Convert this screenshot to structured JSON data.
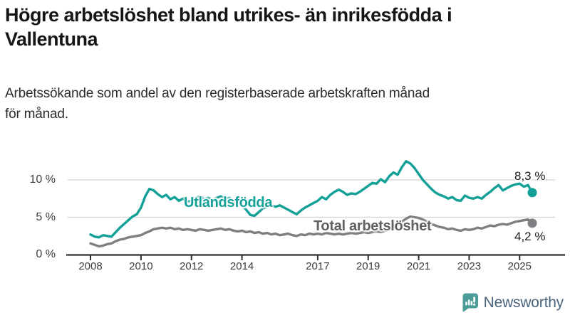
{
  "header": {
    "title": {
      "line1": "Högre arbetslöshet bland utrikes- än inrikesfödda i",
      "line2": "Vallentuna"
    },
    "subtitle": {
      "line1": "Arbetssökande som andel av den registerbaserade arbetskraften månad",
      "line2": "för månad."
    }
  },
  "chart_data": {
    "type": "line",
    "x_start_year": 2008,
    "x_step_years": 0.1666667,
    "x_tick_years": [
      2008,
      2010,
      2012,
      2014,
      2017,
      2019,
      2021,
      2023,
      2025
    ],
    "x_tick_labels": [
      "2008",
      "2010",
      "2012",
      "2014",
      "2017",
      "2019",
      "2021",
      "2023",
      "2025"
    ],
    "y_ticks": [
      {
        "value": 0,
        "label": "0 %"
      },
      {
        "value": 5,
        "label": "5 %"
      },
      {
        "value": 10,
        "label": "10 %"
      }
    ],
    "ylim": [
      0,
      13.5
    ],
    "grid": true,
    "series": [
      {
        "name": "Utlandsfödda",
        "color": "#13a097",
        "end_label": "8,3 %",
        "end_value": 8.3,
        "values": [
          2.7,
          2.4,
          2.3,
          2.6,
          2.5,
          2.4,
          3.0,
          3.6,
          4.1,
          4.6,
          5.1,
          5.4,
          6.3,
          7.8,
          8.8,
          8.6,
          8.1,
          7.7,
          8.0,
          7.4,
          7.7,
          7.2,
          7.5,
          7.1,
          7.2,
          7.6,
          7.8,
          7.4,
          7.6,
          7.3,
          7.6,
          7.8,
          7.4,
          7.6,
          7.2,
          7.0,
          6.6,
          6.0,
          5.3,
          5.2,
          5.7,
          6.2,
          6.4,
          6.6,
          6.4,
          6.6,
          6.3,
          6.0,
          5.7,
          5.4,
          5.9,
          6.3,
          6.6,
          6.9,
          7.2,
          7.7,
          7.4,
          8.0,
          8.4,
          8.7,
          8.4,
          8.0,
          8.2,
          8.1,
          8.4,
          8.8,
          9.2,
          9.6,
          9.5,
          10.1,
          9.7,
          10.5,
          11.0,
          10.7,
          11.7,
          12.5,
          12.2,
          11.6,
          10.8,
          10.0,
          9.4,
          8.8,
          8.3,
          8.0,
          7.8,
          7.5,
          7.7,
          7.3,
          7.2,
          7.9,
          7.6,
          7.5,
          7.7,
          7.5,
          8.0,
          8.4,
          8.9,
          9.3,
          8.6,
          8.9,
          9.2,
          9.4,
          9.5,
          9.1,
          9.3,
          8.3
        ]
      },
      {
        "name": "Total arbetslöshet",
        "color": "#7e7e83",
        "label_color": "#5f5f64",
        "end_label": "4,2 %",
        "end_value": 4.2,
        "values": [
          1.5,
          1.3,
          1.1,
          1.2,
          1.4,
          1.5,
          1.8,
          2.0,
          2.1,
          2.3,
          2.4,
          2.5,
          2.6,
          2.9,
          3.1,
          3.4,
          3.5,
          3.6,
          3.5,
          3.6,
          3.4,
          3.5,
          3.3,
          3.4,
          3.3,
          3.2,
          3.4,
          3.3,
          3.2,
          3.3,
          3.4,
          3.5,
          3.3,
          3.4,
          3.2,
          3.1,
          3.2,
          3.0,
          3.1,
          2.9,
          3.0,
          2.8,
          2.9,
          2.7,
          2.8,
          2.6,
          2.7,
          2.8,
          2.6,
          2.5,
          2.7,
          2.6,
          2.8,
          2.7,
          2.8,
          2.7,
          2.9,
          2.8,
          2.7,
          2.8,
          2.7,
          2.8,
          2.9,
          2.8,
          2.9,
          3.0,
          2.9,
          3.0,
          3.1,
          3.0,
          3.2,
          3.3,
          3.6,
          3.9,
          4.4,
          4.8,
          5.1,
          5.0,
          4.9,
          4.7,
          4.4,
          4.1,
          3.9,
          3.7,
          3.6,
          3.4,
          3.5,
          3.3,
          3.2,
          3.4,
          3.3,
          3.4,
          3.6,
          3.5,
          3.7,
          3.9,
          3.8,
          4.0,
          4.1,
          4.0,
          4.2,
          4.4,
          4.5,
          4.6,
          4.7,
          4.2
        ]
      }
    ]
  },
  "branding": {
    "logo_text": "Newsworthy",
    "logo_icon": "bar-chart-speech-bubble-icon",
    "icon_color": "#4a9d99",
    "text_color": "#4a647e"
  },
  "colors": {
    "gridline": "#d9d9d9",
    "axis": "#2f2f2f",
    "accent_teal": "#13a097",
    "series_gray": "#7e7e83"
  }
}
